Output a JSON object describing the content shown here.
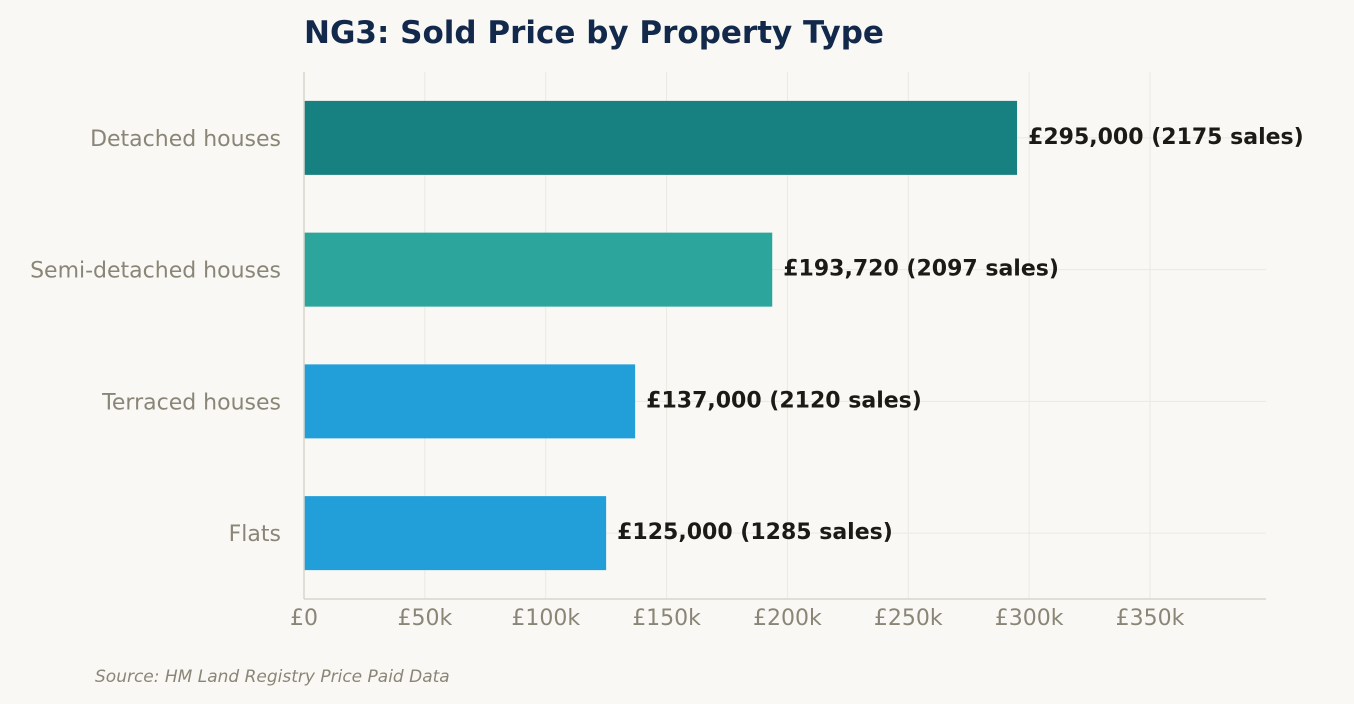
{
  "chart_data": {
    "type": "bar",
    "orientation": "horizontal",
    "title": "NG3: Sold Price by Property Type",
    "categories": [
      "Detached houses",
      "Semi-detached houses",
      "Terraced houses",
      "Flats"
    ],
    "values": [
      295000,
      193720,
      137000,
      125000
    ],
    "sales": [
      2175,
      2097,
      2120,
      1285
    ],
    "data_labels": [
      "£295,000  (2175 sales)",
      "£193,720  (2097 sales)",
      "£137,000  (2120 sales)",
      "£125,000  (1285 sales)"
    ],
    "colors": [
      "#178080",
      "#2ca59d",
      "#229fd9",
      "#229fd9"
    ],
    "xticks": [
      0,
      50000,
      100000,
      150000,
      200000,
      250000,
      300000,
      350000
    ],
    "xtick_labels": [
      "£0",
      "£50k",
      "£100k",
      "£150k",
      "£200k",
      "£250k",
      "£300k",
      "£350k"
    ],
    "xlim": [
      0,
      398000
    ],
    "xlabel": "",
    "ylabel": "",
    "grid": true,
    "legend": "none"
  },
  "source_note": "Source: HM Land Registry Price Paid Data"
}
